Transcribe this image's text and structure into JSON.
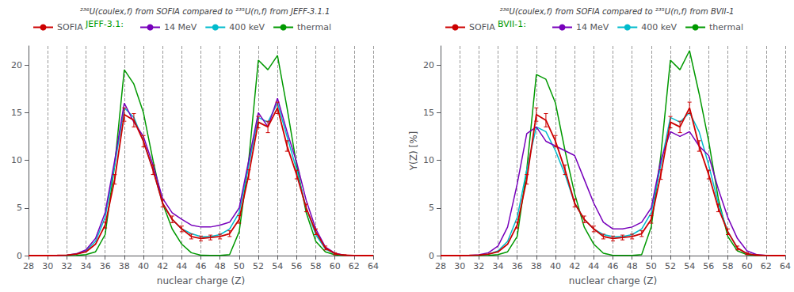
{
  "chart_data": [
    {
      "type": "line",
      "title": "²³⁶U(coulex,f) from SOFIA compared to ²³⁵U(n,f) from JEFF-3.1.1",
      "xlabel": "nuclear charge (Z)",
      "x": [
        28,
        29,
        30,
        31,
        32,
        33,
        34,
        35,
        36,
        37,
        38,
        39,
        40,
        41,
        42,
        43,
        44,
        45,
        46,
        47,
        48,
        49,
        50,
        51,
        52,
        53,
        54,
        55,
        56,
        57,
        58,
        59,
        60,
        61,
        62,
        63,
        64
      ],
      "series": [
        {
          "name": "thermal",
          "color": "#009900",
          "values": [
            0.0,
            0.0,
            0.0,
            0.0,
            0.0,
            0.02,
            0.1,
            0.4,
            2.2,
            9.5,
            19.5,
            18.0,
            15.0,
            10.0,
            5.5,
            2.8,
            1.2,
            0.3,
            0.05,
            0.03,
            0.03,
            0.1,
            2.5,
            10.0,
            20.5,
            19.5,
            21.0,
            15.5,
            9.5,
            4.5,
            1.5,
            0.4,
            0.08,
            0.01,
            0.0,
            0.0,
            0.0
          ]
        },
        {
          "name": "400 keV",
          "color": "#00bbcc",
          "values": [
            0.0,
            0.0,
            0.0,
            0.01,
            0.05,
            0.15,
            0.5,
            1.5,
            4.0,
            9.5,
            15.5,
            14.5,
            12.0,
            9.0,
            5.5,
            3.8,
            2.8,
            2.3,
            2.0,
            2.0,
            2.2,
            2.8,
            4.5,
            9.5,
            14.5,
            14.0,
            16.0,
            12.5,
            9.0,
            5.0,
            2.2,
            0.7,
            0.18,
            0.04,
            0.01,
            0.0,
            0.0
          ]
        },
        {
          "name": "14 MeV",
          "color": "#7700bb",
          "values": [
            0.0,
            0.0,
            0.0,
            0.01,
            0.05,
            0.2,
            0.6,
            1.8,
            4.5,
            10.0,
            16.0,
            14.0,
            12.5,
            9.5,
            6.0,
            4.5,
            3.8,
            3.2,
            3.0,
            3.0,
            3.2,
            3.5,
            5.0,
            10.0,
            15.0,
            13.5,
            16.5,
            13.0,
            9.8,
            5.8,
            2.8,
            0.9,
            0.25,
            0.05,
            0.01,
            0.0,
            0.0
          ]
        },
        {
          "name": "SOFIA",
          "color": "#cc0000",
          "values": [
            0.0,
            0.0,
            0.0,
            0.02,
            0.05,
            0.15,
            0.4,
            1.2,
            3.2,
            8.0,
            14.8,
            14.2,
            12.0,
            9.0,
            5.5,
            3.8,
            2.8,
            2.0,
            1.8,
            1.9,
            2.0,
            2.3,
            3.8,
            8.5,
            14.0,
            13.5,
            15.5,
            11.5,
            8.5,
            5.0,
            2.5,
            0.8,
            0.2,
            0.04,
            0.01,
            0.0,
            0.0
          ],
          "errors": [
            0.0,
            0.0,
            0.0,
            0.0,
            0.0,
            0.0,
            0.0,
            0.0,
            0.3,
            0.5,
            0.7,
            0.7,
            0.6,
            0.5,
            0.4,
            0.35,
            0.3,
            0.25,
            0.25,
            0.25,
            0.25,
            0.3,
            0.4,
            0.5,
            0.6,
            0.6,
            0.6,
            0.55,
            0.45,
            0.4,
            0.3,
            0.2,
            0.1,
            0.05,
            0.0,
            0.0,
            0.0
          ]
        }
      ],
      "annotations": [
        {
          "text": "JEFF-3.1:",
          "color": "#009900"
        }
      ],
      "xlim": [
        28,
        64
      ],
      "xticks": [
        28,
        30,
        32,
        34,
        36,
        38,
        40,
        42,
        44,
        46,
        48,
        50,
        52,
        54,
        56,
        58,
        60,
        62,
        64
      ],
      "ylim": [
        0,
        22
      ],
      "yticks": [
        0,
        5,
        10,
        15,
        20
      ],
      "grid": "x",
      "legend": "upper left"
    },
    {
      "type": "line",
      "title": "²³⁶U(coulex,f) from SOFIA compared to ²³⁵U(n,f) from BVII-1",
      "xlabel": "nuclear charge (Z)",
      "ylabel": "Y(Z) [%]",
      "x": [
        28,
        29,
        30,
        31,
        32,
        33,
        34,
        35,
        36,
        37,
        38,
        39,
        40,
        41,
        42,
        43,
        44,
        45,
        46,
        47,
        48,
        49,
        50,
        51,
        52,
        53,
        54,
        55,
        56,
        57,
        58,
        59,
        60,
        61,
        62,
        63,
        64
      ],
      "series": [
        {
          "name": "thermal",
          "color": "#009900",
          "values": [
            0.0,
            0.0,
            0.0,
            0.0,
            0.0,
            0.02,
            0.1,
            0.4,
            2.0,
            9.0,
            19.0,
            18.5,
            16.0,
            11.0,
            6.5,
            3.0,
            1.2,
            0.25,
            0.03,
            0.02,
            0.02,
            0.1,
            3.0,
            10.5,
            20.5,
            19.5,
            21.5,
            17.0,
            12.0,
            6.0,
            2.0,
            0.5,
            0.1,
            0.01,
            0.0,
            0.0,
            0.0
          ]
        },
        {
          "name": "400 keV",
          "color": "#00bbcc",
          "values": [
            0.0,
            0.0,
            0.0,
            0.01,
            0.04,
            0.15,
            0.5,
            1.5,
            4.0,
            9.0,
            13.5,
            13.0,
            11.0,
            8.5,
            5.5,
            3.8,
            2.8,
            2.2,
            2.0,
            2.0,
            2.2,
            2.8,
            4.5,
            9.5,
            14.5,
            14.0,
            15.0,
            13.0,
            9.5,
            5.5,
            2.5,
            0.8,
            0.2,
            0.04,
            0.01,
            0.0,
            0.0
          ]
        },
        {
          "name": "14 MeV",
          "color": "#7700bb",
          "values": [
            0.0,
            0.0,
            0.0,
            0.02,
            0.08,
            0.3,
            1.0,
            3.0,
            7.5,
            12.8,
            13.5,
            12.0,
            11.5,
            11.0,
            10.5,
            8.0,
            5.5,
            3.5,
            2.8,
            2.8,
            3.0,
            3.5,
            5.0,
            10.0,
            13.0,
            12.5,
            13.0,
            11.5,
            10.5,
            7.0,
            4.0,
            1.8,
            0.5,
            0.1,
            0.02,
            0.0,
            0.0
          ]
        },
        {
          "name": "SOFIA",
          "color": "#cc0000",
          "values": [
            0.0,
            0.0,
            0.0,
            0.02,
            0.05,
            0.15,
            0.4,
            1.2,
            3.2,
            8.0,
            14.8,
            14.2,
            12.0,
            9.0,
            5.5,
            3.8,
            2.8,
            2.0,
            1.8,
            1.9,
            2.0,
            2.3,
            3.8,
            8.5,
            14.0,
            13.5,
            15.5,
            11.5,
            8.5,
            5.0,
            2.5,
            0.8,
            0.2,
            0.04,
            0.01,
            0.0,
            0.0
          ],
          "errors": [
            0.0,
            0.0,
            0.0,
            0.0,
            0.0,
            0.0,
            0.0,
            0.0,
            0.3,
            0.5,
            0.7,
            0.7,
            0.6,
            0.5,
            0.4,
            0.35,
            0.3,
            0.25,
            0.25,
            0.25,
            0.25,
            0.3,
            0.4,
            0.5,
            0.6,
            0.6,
            0.6,
            0.55,
            0.45,
            0.4,
            0.3,
            0.2,
            0.1,
            0.05,
            0.0,
            0.0,
            0.0
          ]
        }
      ],
      "annotations": [
        {
          "text": "BVII-1:",
          "color": "#009900"
        }
      ],
      "xlim": [
        28,
        64
      ],
      "xticks": [
        28,
        30,
        32,
        34,
        36,
        38,
        40,
        42,
        44,
        46,
        48,
        50,
        52,
        54,
        56,
        58,
        60,
        62,
        64
      ],
      "ylim": [
        0,
        22
      ],
      "yticks": [
        0,
        5,
        10,
        15,
        20
      ],
      "grid": "x",
      "legend": "upper left"
    }
  ]
}
